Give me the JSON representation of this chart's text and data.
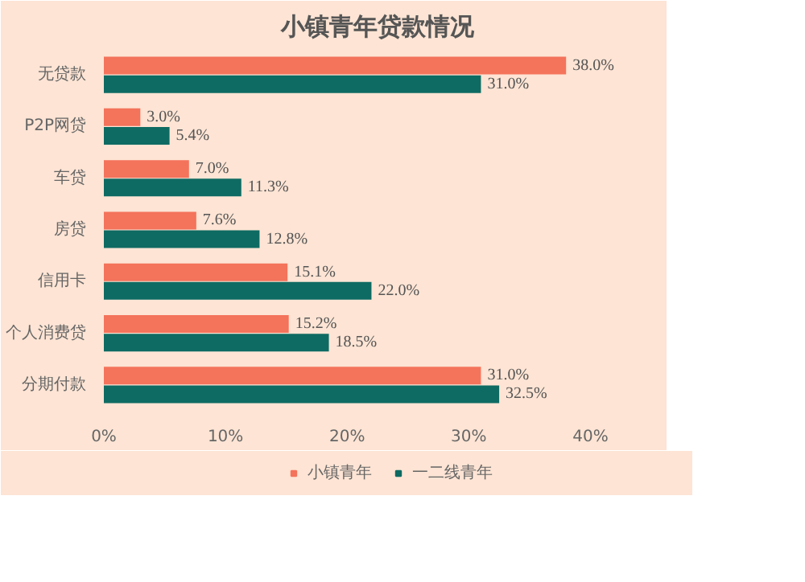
{
  "chart_data": {
    "type": "bar",
    "orientation": "horizontal",
    "title": "小镇青年贷款情况",
    "categories": [
      "无贷款",
      "P2P网贷",
      "车贷",
      "房贷",
      "信用卡",
      "个人消费贷",
      "分期付款"
    ],
    "series": [
      {
        "name": "小镇青年",
        "color": "#f4735b",
        "values": [
          38.0,
          3.0,
          7.0,
          7.6,
          15.1,
          15.2,
          31.0
        ],
        "value_labels": [
          "38.0%",
          "3.0%",
          "7.0%",
          "7.6%",
          "15.1%",
          "15.2%",
          "31.0%"
        ]
      },
      {
        "name": "一二线青年",
        "color": "#0e6b63",
        "values": [
          31.0,
          5.4,
          11.3,
          12.8,
          22.0,
          18.5,
          32.5
        ],
        "value_labels": [
          "31.0%",
          "5.4%",
          "11.3%",
          "12.8%",
          "22.0%",
          "18.5%",
          "32.5%"
        ]
      }
    ],
    "xlim": [
      0,
      45
    ],
    "xticks": [
      {
        "value": 0,
        "label": "0%"
      },
      {
        "value": 10,
        "label": "10%"
      },
      {
        "value": 20,
        "label": "20%"
      },
      {
        "value": 30,
        "label": "30%"
      },
      {
        "value": 40,
        "label": "40%"
      }
    ],
    "grid": false,
    "legend": "bottom"
  }
}
